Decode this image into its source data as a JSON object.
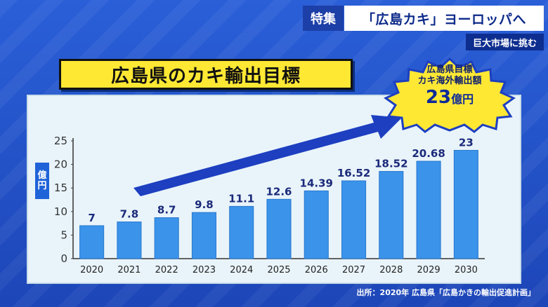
{
  "header": {
    "tag": "特集",
    "headline": "「広島カキ」ヨーロッパへ",
    "subhead": "巨大市場に挑む"
  },
  "title": "広島県のカキ輸出目標",
  "burst": {
    "line1": "広島県目標",
    "line2": "カキ海外輸出額",
    "amount": "23",
    "amount_unit": "億円"
  },
  "y_unit": [
    "億",
    "円"
  ],
  "source": "出所：2020年 広島県「広島かきの輸出促進計画」",
  "colors": {
    "bar": "#3b93ea",
    "bar_edge": "#2a79cf",
    "panel": "#e9f4fa",
    "arrow": "#1d3fc0",
    "title_bg": "#ffe834"
  },
  "chart_data": {
    "type": "bar",
    "categories": [
      "2020",
      "2021",
      "2022",
      "2023",
      "2024",
      "2025",
      "2026",
      "2027",
      "2028",
      "2029",
      "2030"
    ],
    "values": [
      7,
      7.8,
      8.7,
      9.8,
      11.1,
      12.6,
      14.39,
      16.52,
      18.52,
      20.68,
      23
    ],
    "labels": [
      "7",
      "7.8",
      "8.7",
      "9.8",
      "11.1",
      "12.6",
      "14.39",
      "16.52",
      "18.52",
      "20.68",
      "23"
    ],
    "ylim": [
      0,
      25
    ],
    "yticks": [
      0,
      5,
      10,
      15,
      20,
      25
    ],
    "grid": false,
    "ylabel": "億円"
  }
}
